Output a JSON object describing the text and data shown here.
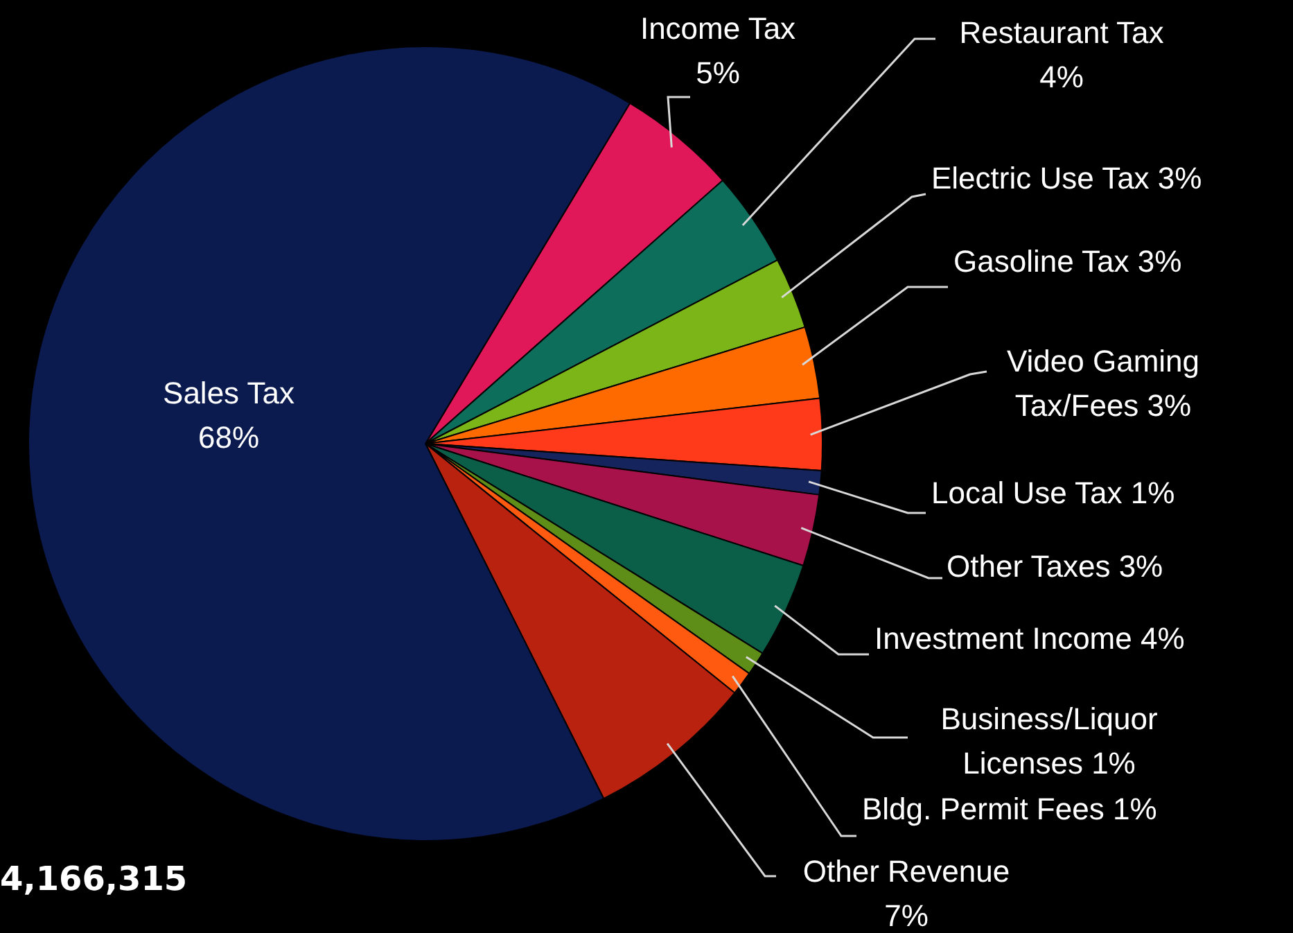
{
  "chart_data": {
    "type": "pie",
    "categories": [
      "Income Tax",
      "Restaurant Tax",
      "Electric Use Tax",
      "Gasoline Tax",
      "Video Gaming Tax/Fees",
      "Local Use Tax",
      "Other Taxes",
      "Investment Income",
      "Business/Liquor Licenses",
      "Bldg. Permit Fees",
      "Other Revenue",
      "Sales Tax"
    ],
    "values": [
      5,
      4,
      3,
      3,
      3,
      1,
      3,
      4,
      1,
      1,
      7,
      68
    ],
    "value_labels": [
      "5%",
      "4%",
      "3%",
      "3%",
      "3%",
      "1%",
      "3%",
      "4%",
      "1%",
      "1%",
      "7%",
      "68%"
    ],
    "colors": [
      "#e0185a",
      "#0e6e5c",
      "#7cb518",
      "#ff6a00",
      "#ff3a1a",
      "#16245e",
      "#a8124a",
      "#0b5e48",
      "#5e8e18",
      "#ff5a10",
      "#b8220f",
      "#0b1a4f"
    ],
    "annotations": [
      "4,166,315"
    ],
    "legend": false
  }
}
